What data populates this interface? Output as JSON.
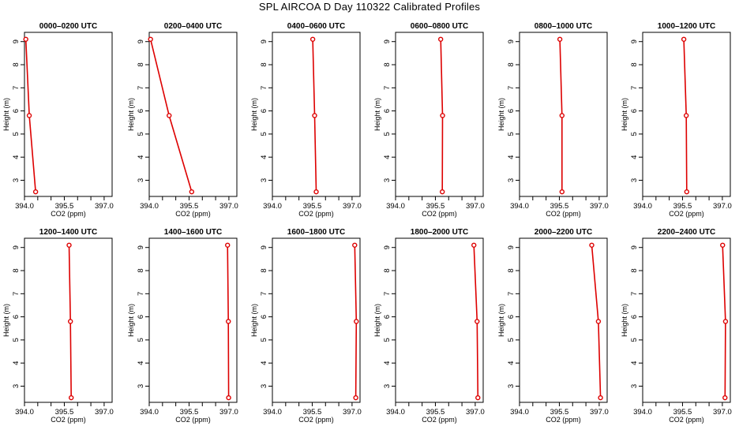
{
  "page": {
    "title": "SPL AIRCOA D  Day 110322  Calibrated Profiles"
  },
  "axes": {
    "xlabel": "CO2 (ppm)",
    "ylabel": "Height (m)",
    "xlim": [
      394.0,
      397.3
    ],
    "ylim": [
      2.3,
      9.4
    ],
    "xticks": [
      394.0,
      394.5,
      395.0,
      395.5,
      396.0,
      396.5,
      397.0
    ],
    "xtick_labels": [
      "394.0",
      "",
      "",
      "395.5",
      "",
      "",
      "397.0"
    ],
    "yticks": [
      3,
      4,
      5,
      6,
      7,
      8,
      9
    ],
    "ytick_labels": [
      "3",
      "4",
      "5",
      "6",
      "7",
      "8",
      "9"
    ]
  },
  "colors": {
    "series": "#dd0000",
    "axis": "#000000"
  },
  "chart_data": [
    {
      "type": "line",
      "title": "0000–0200 UTC",
      "x": [
        394.05,
        394.18,
        394.42
      ],
      "y": [
        9.1,
        5.8,
        2.5
      ]
    },
    {
      "type": "line",
      "title": "0200–0400 UTC",
      "x": [
        394.05,
        394.75,
        395.6
      ],
      "y": [
        9.1,
        5.8,
        2.5
      ]
    },
    {
      "type": "line",
      "title": "0400–0600 UTC",
      "x": [
        395.52,
        395.59,
        395.65
      ],
      "y": [
        9.1,
        5.8,
        2.5
      ]
    },
    {
      "type": "line",
      "title": "0600–0800 UTC",
      "x": [
        395.7,
        395.77,
        395.76
      ],
      "y": [
        9.1,
        5.8,
        2.5
      ]
    },
    {
      "type": "line",
      "title": "0800–1000 UTC",
      "x": [
        395.52,
        395.6,
        395.6
      ],
      "y": [
        9.1,
        5.8,
        2.5
      ]
    },
    {
      "type": "line",
      "title": "1000–1200 UTC",
      "x": [
        395.55,
        395.64,
        395.66
      ],
      "y": [
        9.1,
        5.8,
        2.5
      ]
    },
    {
      "type": "line",
      "title": "1200–1400 UTC",
      "x": [
        395.68,
        395.73,
        395.76
      ],
      "y": [
        9.1,
        5.8,
        2.5
      ]
    },
    {
      "type": "line",
      "title": "1400–1600 UTC",
      "x": [
        396.95,
        396.98,
        396.99
      ],
      "y": [
        9.1,
        5.8,
        2.5
      ]
    },
    {
      "type": "line",
      "title": "1600–1800 UTC",
      "x": [
        397.1,
        397.16,
        397.14
      ],
      "y": [
        9.1,
        5.8,
        2.5
      ]
    },
    {
      "type": "line",
      "title": "1800–2000 UTC",
      "x": [
        396.95,
        397.07,
        397.1
      ],
      "y": [
        9.1,
        5.8,
        2.5
      ]
    },
    {
      "type": "line",
      "title": "2000–2200 UTC",
      "x": [
        396.72,
        396.97,
        397.05
      ],
      "y": [
        9.1,
        5.8,
        2.5
      ]
    },
    {
      "type": "line",
      "title": "2200–2400 UTC",
      "x": [
        397.01,
        397.12,
        397.1
      ],
      "y": [
        9.1,
        5.8,
        2.5
      ]
    }
  ]
}
